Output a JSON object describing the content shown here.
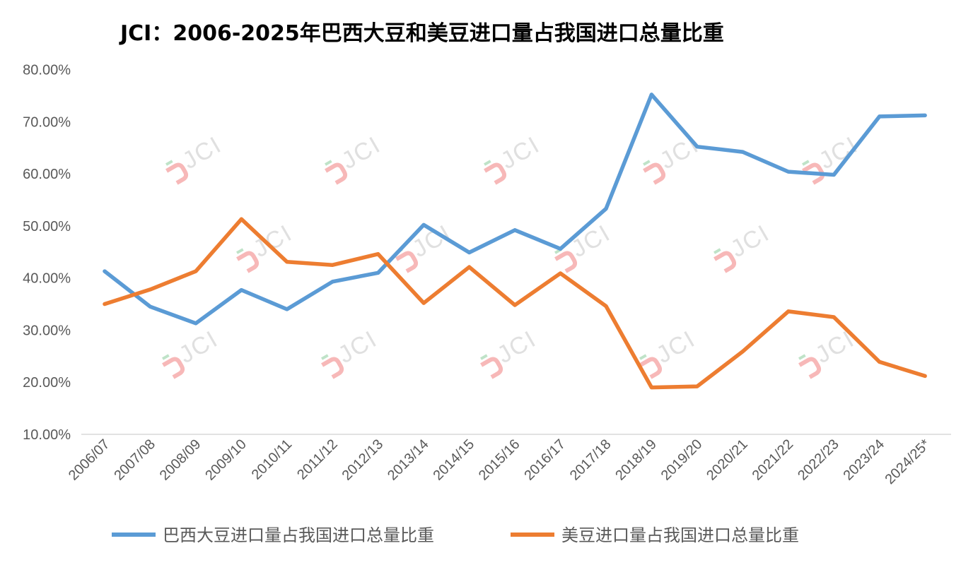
{
  "chart_data": {
    "type": "line",
    "title": "JCI：2006-2025年巴西大豆和美豆进口量占我国进口总量比重",
    "categories": [
      "2006/07",
      "2007/08",
      "2008/09",
      "2009/10",
      "2010/11",
      "2011/12",
      "2012/13",
      "2013/14",
      "2014/15",
      "2015/16",
      "2016/17",
      "2017/18",
      "2018/19",
      "2019/20",
      "2020/21",
      "2021/22",
      "2022/23",
      "2023/24",
      "2024/25*"
    ],
    "y_tick_labels": [
      "10.00%",
      "20.00%",
      "30.00%",
      "40.00%",
      "50.00%",
      "60.00%",
      "70.00%",
      "80.00%"
    ],
    "ylim": [
      10,
      80
    ],
    "grid": false,
    "legend_position": "bottom",
    "watermark_text": "JCI",
    "series": [
      {
        "name": "巴西大豆进口量占我国进口总量比重",
        "color": "#5b9bd5",
        "values": [
          41.3,
          34.5,
          31.3,
          37.7,
          34.0,
          39.3,
          41.0,
          50.2,
          44.9,
          49.2,
          45.6,
          53.3,
          75.2,
          65.2,
          64.2,
          60.4,
          59.8,
          71.0,
          71.2
        ]
      },
      {
        "name": "美豆进口量占我国进口总量比重",
        "color": "#ed7d31",
        "values": [
          35.0,
          37.8,
          41.3,
          51.3,
          43.1,
          42.5,
          44.6,
          35.2,
          42.1,
          34.8,
          40.9,
          34.6,
          19.0,
          19.2,
          25.9,
          33.6,
          32.5,
          23.9,
          21.2
        ]
      }
    ]
  }
}
